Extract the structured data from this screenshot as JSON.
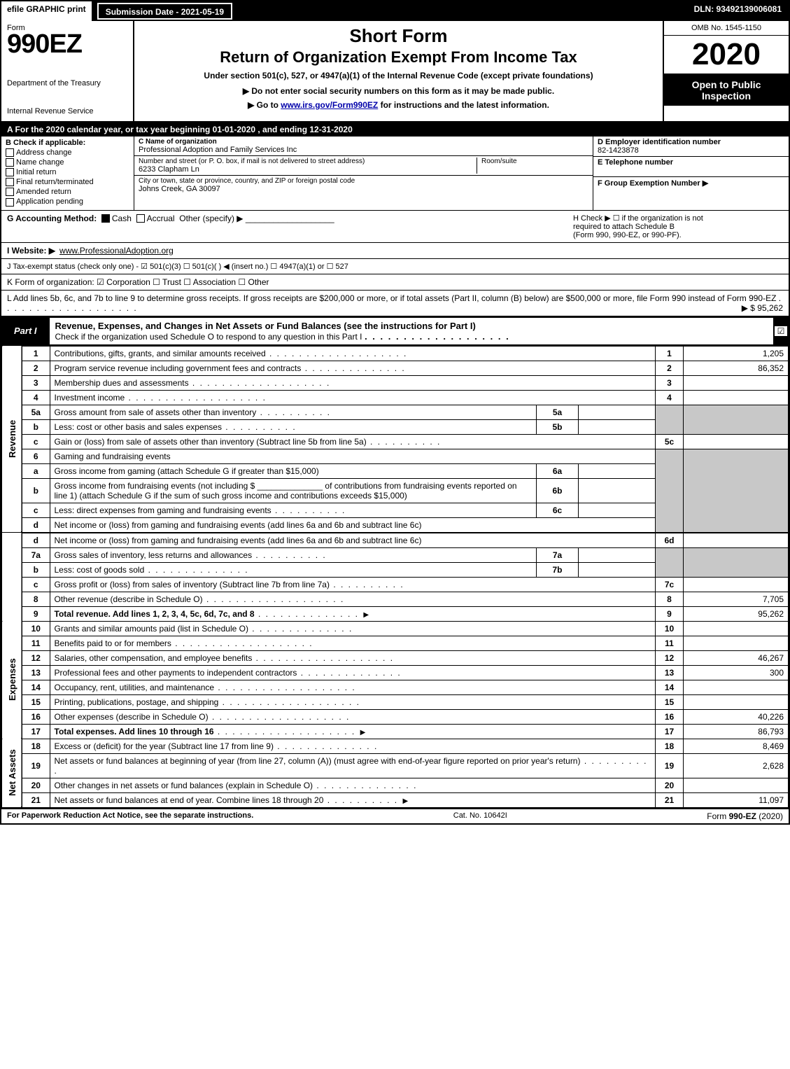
{
  "topbar": {
    "efile": "efile GRAPHIC print",
    "subdate_label": "Submission Date - 2021-05-19",
    "dln": "DLN: 93492139006081"
  },
  "header": {
    "form_label": "Form",
    "form_num": "990EZ",
    "dept1": "Department of the Treasury",
    "dept2": "Internal Revenue Service",
    "title1": "Short Form",
    "title2": "Return of Organization Exempt From Income Tax",
    "sub": "Under section 501(c), 527, or 4947(a)(1) of the Internal Revenue Code (except private foundations)",
    "note": "▶ Do not enter social security numbers on this form as it may be made public.",
    "link_pre": "▶ Go to ",
    "link_url": "www.irs.gov/Form990EZ",
    "link_post": " for instructions and the latest information.",
    "omb": "OMB No. 1545-1150",
    "year": "2020",
    "inspect1": "Open to Public",
    "inspect2": "Inspection"
  },
  "rowA": "A  For the 2020 calendar year, or tax year beginning 01-01-2020 , and ending 12-31-2020",
  "B": {
    "hdr": "B  Check if applicable:",
    "addr_change": "Address change",
    "name_change": "Name change",
    "initial": "Initial return",
    "final": "Final return/terminated",
    "amended": "Amended return",
    "pending": "Application pending"
  },
  "C": {
    "lbl": "C Name of organization",
    "name": "Professional Adoption and Family Services Inc",
    "addr_lbl": "Number and street (or P. O. box, if mail is not delivered to street address)",
    "addr": "6233 Clapham Ln",
    "room_lbl": "Room/suite",
    "city_lbl": "City or town, state or province, country, and ZIP or foreign postal code",
    "city": "Johns Creek, GA  30097"
  },
  "D": {
    "ein_lbl": "D Employer identification number",
    "ein": "82-1423878",
    "tel_lbl": "E Telephone number",
    "grp_lbl": "F Group Exemption Number   ▶"
  },
  "G": {
    "label": "G Accounting Method:",
    "cash": "Cash",
    "accrual": "Accrual",
    "other": "Other (specify) ▶"
  },
  "H": {
    "text1": "H  Check ▶  ☐  if the organization is not",
    "text2": "required to attach Schedule B",
    "text3": "(Form 990, 990-EZ, or 990-PF)."
  },
  "I": {
    "label": "I Website: ▶",
    "url": "www.ProfessionalAdoption.org"
  },
  "J": {
    "text": "J Tax-exempt status (check only one) - ☑ 501(c)(3) ☐ 501(c)(  ) ◀ (insert no.) ☐ 4947(a)(1) or ☐ 527"
  },
  "K": {
    "text": "K Form of organization:   ☑ Corporation  ☐ Trust  ☐ Association  ☐ Other"
  },
  "L": {
    "text": "L Add lines 5b, 6c, and 7b to line 9 to determine gross receipts. If gross receipts are $200,000 or more, or if total assets (Part II, column (B) below) are $500,000 or more, file Form 990 instead of Form 990-EZ",
    "amt_label": "▶ $ 95,262"
  },
  "part1": {
    "label": "Part I",
    "title": "Revenue, Expenses, and Changes in Net Assets or Fund Balances (see the instructions for Part I)",
    "check_text": "Check if the organization used Schedule O to respond to any question in this Part I"
  },
  "sides": {
    "revenue": "Revenue",
    "expenses": "Expenses",
    "netassets": "Net Assets"
  },
  "lines": {
    "l1": {
      "n": "1",
      "d": "Contributions, gifts, grants, and similar amounts received",
      "c": "1",
      "v": "1,205"
    },
    "l2": {
      "n": "2",
      "d": "Program service revenue including government fees and contracts",
      "c": "2",
      "v": "86,352"
    },
    "l3": {
      "n": "3",
      "d": "Membership dues and assessments",
      "c": "3",
      "v": ""
    },
    "l4": {
      "n": "4",
      "d": "Investment income",
      "c": "4",
      "v": ""
    },
    "l5a": {
      "n": "5a",
      "d": "Gross amount from sale of assets other than inventory",
      "sc": "5a"
    },
    "l5b": {
      "n": "b",
      "d": "Less: cost or other basis and sales expenses",
      "sc": "5b"
    },
    "l5c": {
      "n": "c",
      "d": "Gain or (loss) from sale of assets other than inventory (Subtract line 5b from line 5a)",
      "c": "5c",
      "v": ""
    },
    "l6": {
      "n": "6",
      "d": "Gaming and fundraising events"
    },
    "l6a": {
      "n": "a",
      "d": "Gross income from gaming (attach Schedule G if greater than $15,000)",
      "sc": "6a"
    },
    "l6b": {
      "n": "b",
      "d1": "Gross income from fundraising events (not including $",
      "d2": "of contributions from fundraising events reported on line 1) (attach Schedule G if the sum of such gross income and contributions exceeds $15,000)",
      "sc": "6b"
    },
    "l6c": {
      "n": "c",
      "d": "Less: direct expenses from gaming and fundraising events",
      "sc": "6c"
    },
    "l6d": {
      "n": "d",
      "d": "Net income or (loss) from gaming and fundraising events (add lines 6a and 6b and subtract line 6c)",
      "c": "6d",
      "v": ""
    },
    "l7a": {
      "n": "7a",
      "d": "Gross sales of inventory, less returns and allowances",
      "sc": "7a"
    },
    "l7b": {
      "n": "b",
      "d": "Less: cost of goods sold",
      "sc": "7b"
    },
    "l7c": {
      "n": "c",
      "d": "Gross profit or (loss) from sales of inventory (Subtract line 7b from line 7a)",
      "c": "7c",
      "v": ""
    },
    "l8": {
      "n": "8",
      "d": "Other revenue (describe in Schedule O)",
      "c": "8",
      "v": "7,705"
    },
    "l9": {
      "n": "9",
      "d": "Total revenue. Add lines 1, 2, 3, 4, 5c, 6d, 7c, and 8",
      "c": "9",
      "v": "95,262"
    },
    "l10": {
      "n": "10",
      "d": "Grants and similar amounts paid (list in Schedule O)",
      "c": "10",
      "v": ""
    },
    "l11": {
      "n": "11",
      "d": "Benefits paid to or for members",
      "c": "11",
      "v": ""
    },
    "l12": {
      "n": "12",
      "d": "Salaries, other compensation, and employee benefits",
      "c": "12",
      "v": "46,267"
    },
    "l13": {
      "n": "13",
      "d": "Professional fees and other payments to independent contractors",
      "c": "13",
      "v": "300"
    },
    "l14": {
      "n": "14",
      "d": "Occupancy, rent, utilities, and maintenance",
      "c": "14",
      "v": ""
    },
    "l15": {
      "n": "15",
      "d": "Printing, publications, postage, and shipping",
      "c": "15",
      "v": ""
    },
    "l16": {
      "n": "16",
      "d": "Other expenses (describe in Schedule O)",
      "c": "16",
      "v": "40,226"
    },
    "l17": {
      "n": "17",
      "d": "Total expenses. Add lines 10 through 16",
      "c": "17",
      "v": "86,793"
    },
    "l18": {
      "n": "18",
      "d": "Excess or (deficit) for the year (Subtract line 17 from line 9)",
      "c": "18",
      "v": "8,469"
    },
    "l19": {
      "n": "19",
      "d": "Net assets or fund balances at beginning of year (from line 27, column (A)) (must agree with end-of-year figure reported on prior year's return)",
      "c": "19",
      "v": "2,628"
    },
    "l20": {
      "n": "20",
      "d": "Other changes in net assets or fund balances (explain in Schedule O)",
      "c": "20",
      "v": ""
    },
    "l21": {
      "n": "21",
      "d": "Net assets or fund balances at end of year. Combine lines 18 through 20",
      "c": "21",
      "v": "11,097"
    }
  },
  "footer": {
    "l": "For Paperwork Reduction Act Notice, see the separate instructions.",
    "c": "Cat. No. 10642I",
    "r": "Form 990-EZ (2020)"
  },
  "colors": {
    "black": "#000000",
    "white": "#ffffff",
    "shade": "#c8c8c8",
    "link": "#0000aa"
  }
}
